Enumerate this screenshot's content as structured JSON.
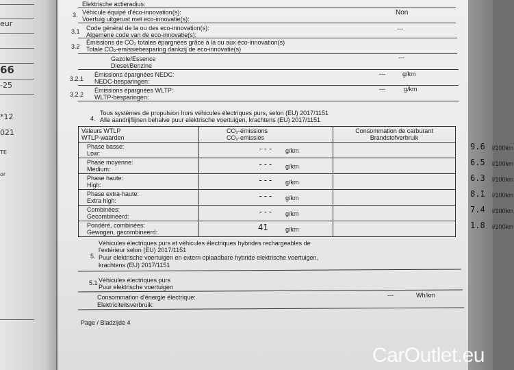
{
  "left_sheet": {
    "fragments": [
      "eur",
      "66",
      "-25",
      "*12",
      "021",
      "TE",
      "or"
    ]
  },
  "doc": {
    "elec_range_nl": "Elektrische actieradius:",
    "s3": {
      "num": "3.",
      "fr": "Véhicule équipé d'éco-innovation(s):",
      "nl": "Voertuig uitgerust met eco-innovatie(s):",
      "value": "Non"
    },
    "s31": {
      "num": "3.1",
      "fr": "Code général de la ou des eco-innovation(s):",
      "nl": "Algemene code van de eco-innovatie(s):",
      "value": "---"
    },
    "s32": {
      "num": "3.2",
      "fr": "Émissions de CO₂ totales épargnées grâce à la ou aux éco-innovation(s)",
      "nl": "Totale CO₂-emissiebesparing dankzij de eco-innovatie(s)"
    },
    "fuel": {
      "fr": "Gazole/Essence",
      "nl": "Diesel/Benzine",
      "value": "---"
    },
    "s321": {
      "num": "3.2.1",
      "fr": "Émissions épargnées NEDC:",
      "nl": "NEDC-besparingen:",
      "value": "---",
      "unit": "g/km"
    },
    "s322": {
      "num": "3.2.2",
      "fr": "Émissions épargnées WLTP:",
      "nl": "WLTP-besparingen:",
      "value": "---",
      "unit": "g/km"
    },
    "s4": {
      "num": "4.",
      "fr": "Tous systèmes de propulsion hors véhicules électriques purs, selon (EU) 2017/1151",
      "nl": "Alle aandrijflijnen behalve puur elektrische voertuigen, krachtens (EU) 2017/1151"
    },
    "table": {
      "headers": [
        {
          "fr": "Valeurs WTLP",
          "nl": "WTLP-waarden"
        },
        {
          "fr": "CO₂-émissions",
          "nl": "CO₂-emissies"
        },
        {
          "fr": "Consommation de carburant",
          "nl": "Brandstofverbruik"
        }
      ],
      "rows": [
        {
          "fr": "Phase basse:",
          "nl": "Low:",
          "co2": "---",
          "co2_unit": "g/km",
          "fuel": "9.6",
          "fuel_unit": "l/100km"
        },
        {
          "fr": "Phase moyenne:",
          "nl": "Medium:",
          "co2": "---",
          "co2_unit": "g/km",
          "fuel": "6.5",
          "fuel_unit": "l/100km"
        },
        {
          "fr": "Phase haute:",
          "nl": "High:",
          "co2": "---",
          "co2_unit": "g/km",
          "fuel": "6.3",
          "fuel_unit": "l/100km"
        },
        {
          "fr": "Phase extra-haute:",
          "nl": "Extra high:",
          "co2": "---",
          "co2_unit": "g/km",
          "fuel": "8.1",
          "fuel_unit": "l/100km"
        },
        {
          "fr": "Combinées:",
          "nl": "Gecombineerd:",
          "co2": "---",
          "co2_unit": "g/km",
          "fuel": "7.4",
          "fuel_unit": "l/100km"
        },
        {
          "fr": "Pondéré, combinées:",
          "nl": "Gewogen, gecombineerd:",
          "co2": "41",
          "co2_unit": "g/km",
          "fuel": "1.8",
          "fuel_unit": "l/100km"
        }
      ]
    },
    "s5": {
      "num": "5.",
      "fr1": "Véhicules électriques purs et véhicules électriques hybrides rechargeables de",
      "fr2": "l'extérieur selon (EU) 2017/1151",
      "nl1": "Puur elektrische voertuigen en extern oplaadbare hybride elektrische voertuigen,",
      "nl2": "krachtens (EU) 2017/1151"
    },
    "s51": {
      "num": "5.1",
      "fr": "Véhicules électriques purs",
      "nl": "Puur elektrische voertuigen"
    },
    "energy": {
      "fr": "Consommation d'énergie électrique:",
      "nl": "Elektriciteitsverbruik:",
      "value": "---",
      "unit": "Wh/km"
    },
    "page": "Page / Bladzijde 4"
  },
  "watermark": "CarOutlet.eu"
}
